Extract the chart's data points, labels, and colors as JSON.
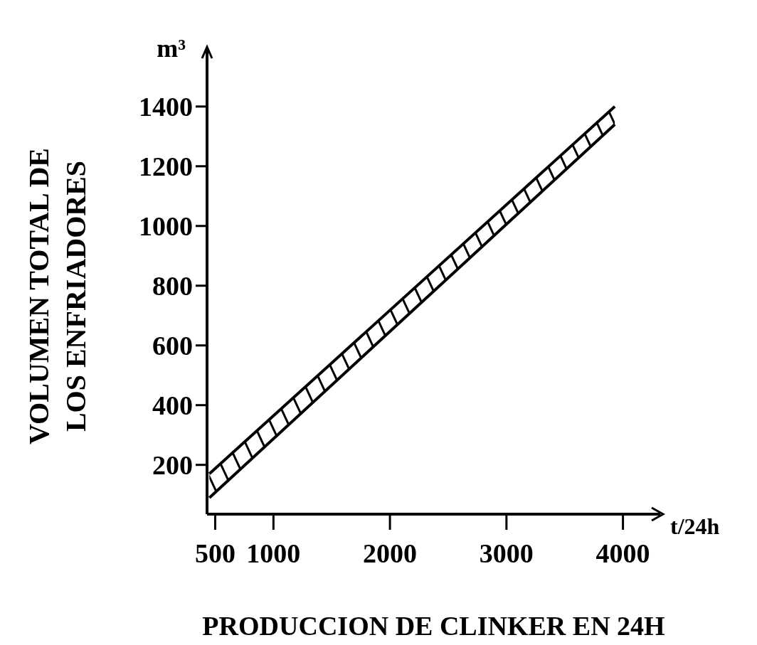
{
  "chart_data": {
    "type": "line",
    "xlabel": "PRODUCCION DE CLINKER EN 24H",
    "ylabel": "VOLUMEN TOTAL DE\nLOS ENFRIADORES",
    "annotations": [
      "m³",
      "t/24h"
    ],
    "xlim": [
      430,
      4320
    ],
    "xticks": [
      500,
      1000,
      2000,
      3000,
      4000
    ],
    "ylim": [
      35,
      1590
    ],
    "yticks": [
      200,
      400,
      600,
      800,
      1000,
      1200,
      1400
    ],
    "marker": "none",
    "x": [
      450,
      3930
    ],
    "series": [
      {
        "color": "#000000",
        "values": [
          170,
          1400
        ],
        "lower": [
          90,
          1340
        ],
        "upper": [
          170,
          1400
        ]
      },
      {
        "color": "#000000",
        "values": [
          90,
          1340
        ]
      }
    ]
  }
}
